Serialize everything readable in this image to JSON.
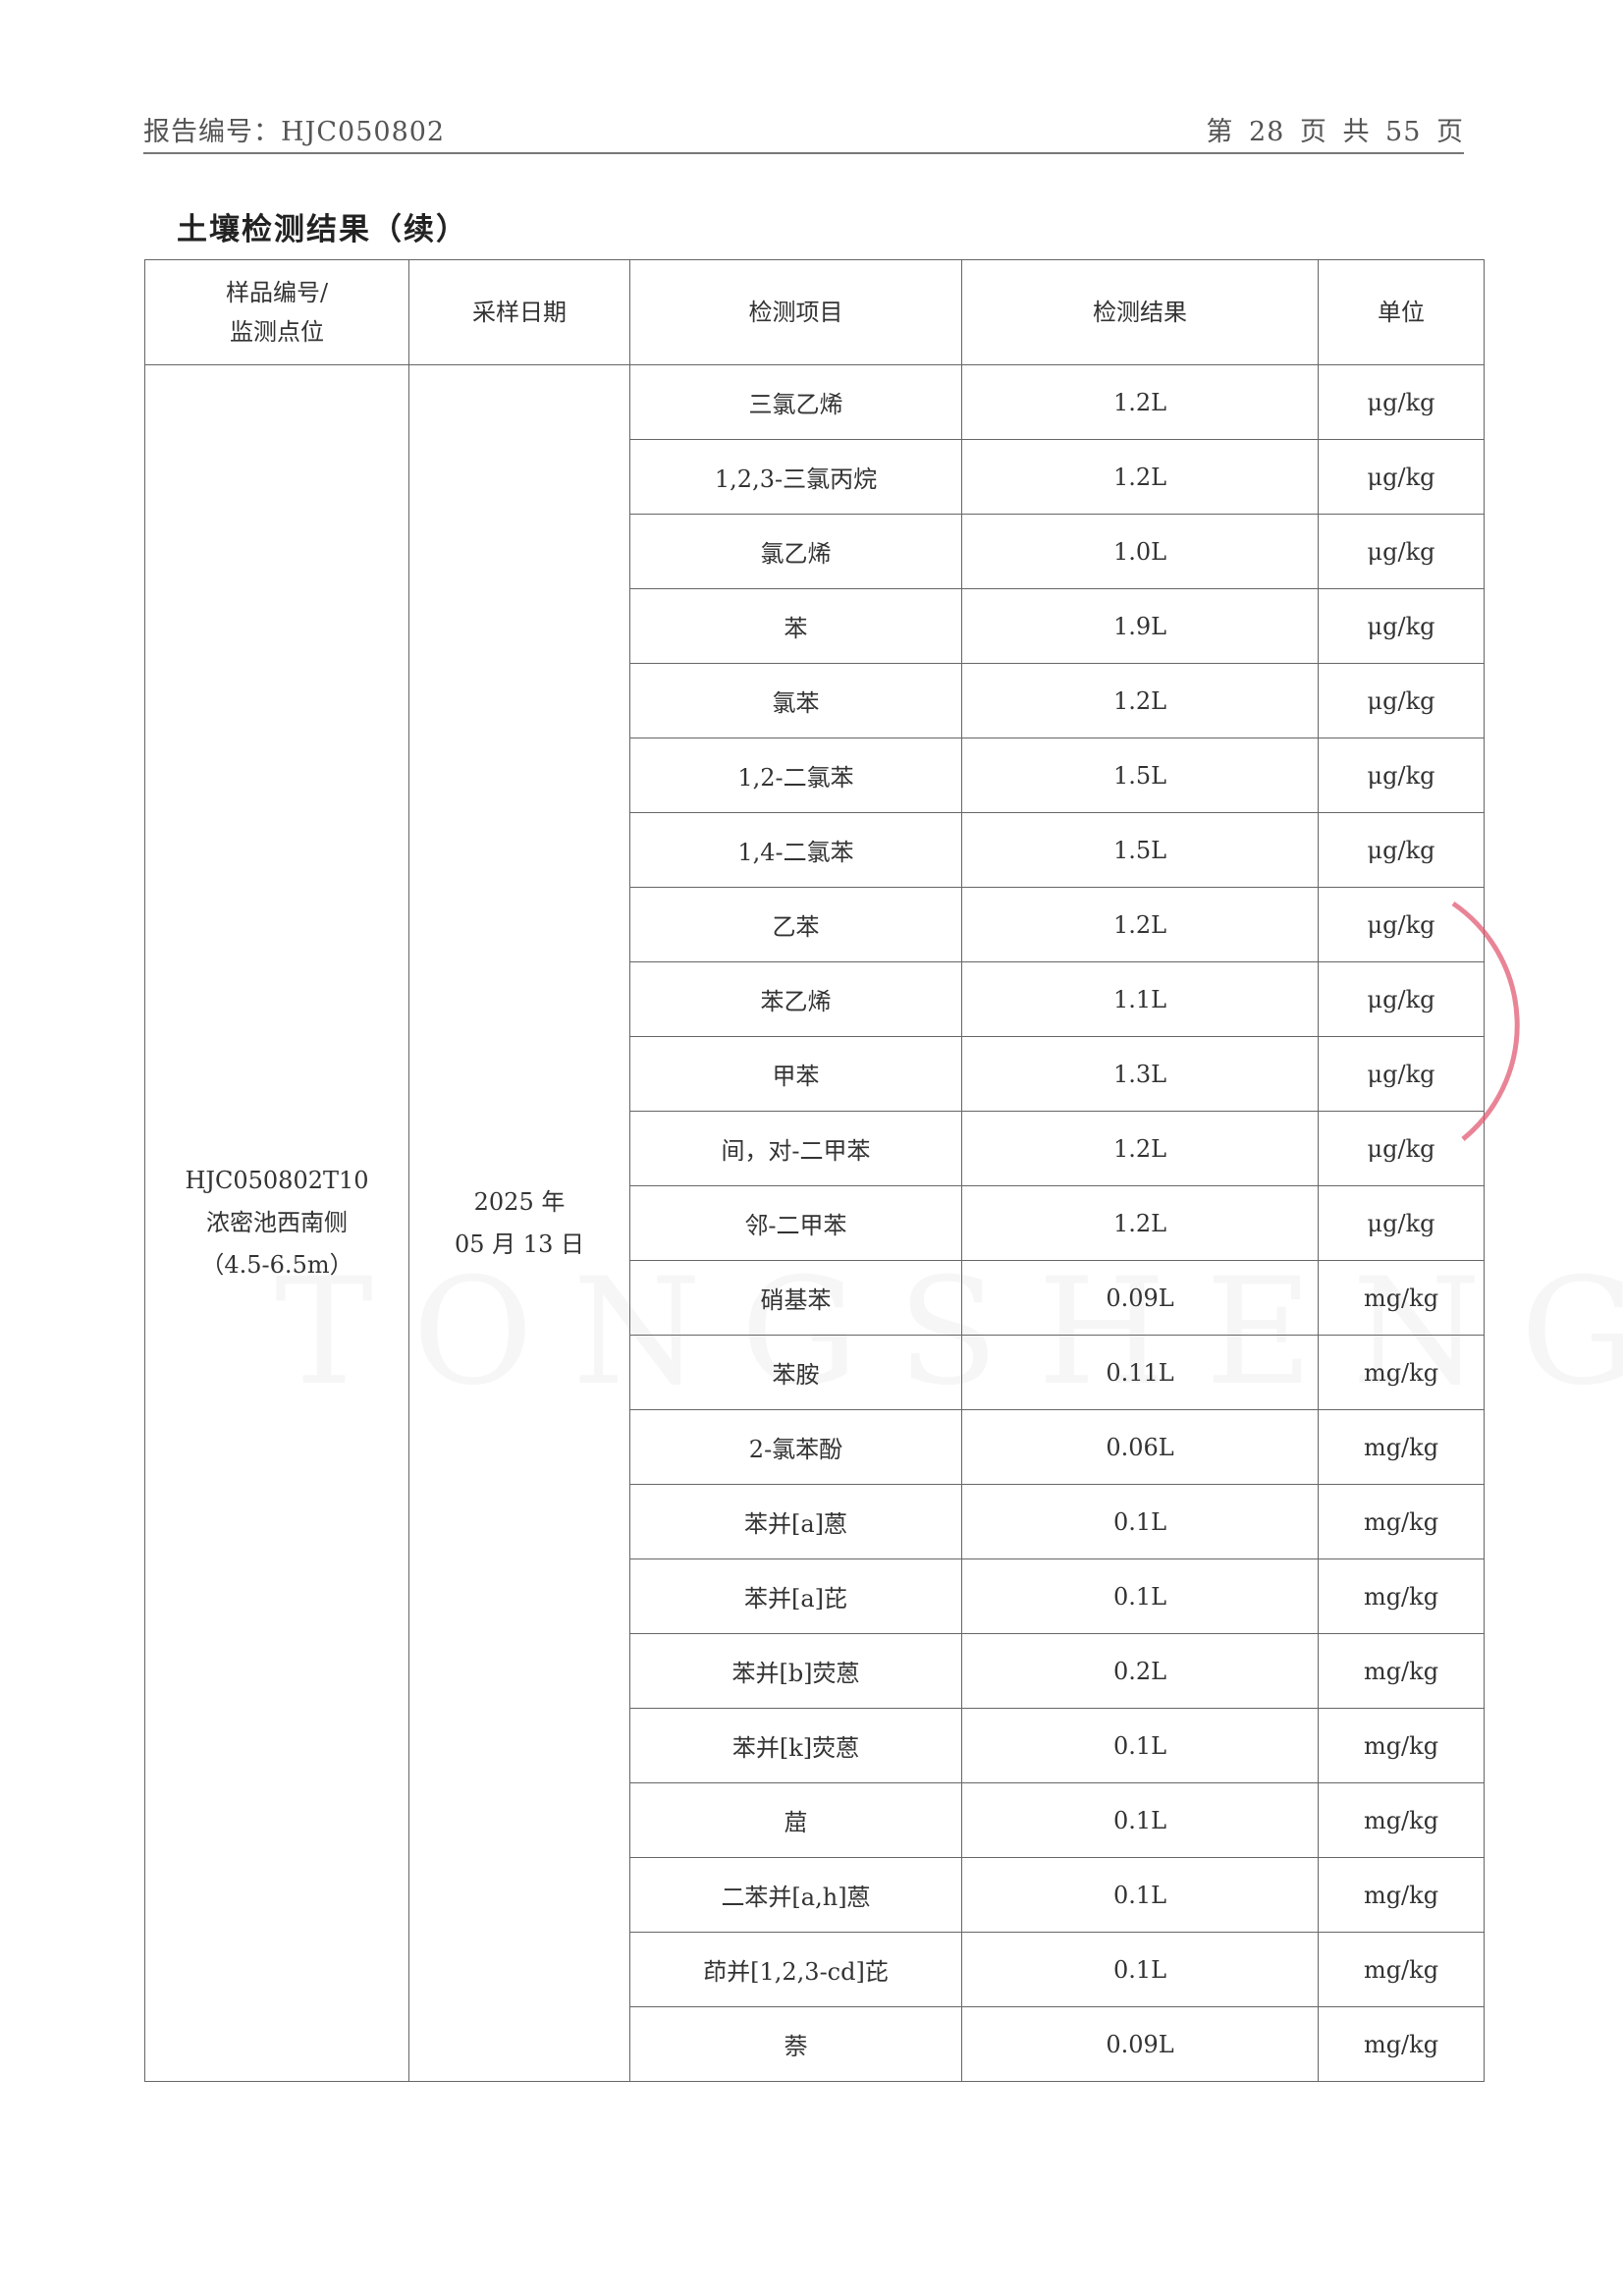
{
  "header": {
    "report_no": "报告编号：HJC050802",
    "page_info": "第 28 页 共 55 页"
  },
  "title": "土壤检测结果（续）",
  "table": {
    "headers": [
      "样品编号/\n监测点位",
      "采样日期",
      "检测项目",
      "检测结果",
      "单位"
    ],
    "sample": {
      "id": "HJC050802T10",
      "location": "浓密池西南侧",
      "depth": "（4.5-6.5m）"
    },
    "date": {
      "year": "2025 年",
      "day": "05 月 13 日"
    },
    "rows": [
      {
        "item": "三氯乙烯",
        "result": "1.2L",
        "unit": "μg/kg"
      },
      {
        "item": "1,2,3-三氯丙烷",
        "result": "1.2L",
        "unit": "μg/kg"
      },
      {
        "item": "氯乙烯",
        "result": "1.0L",
        "unit": "μg/kg"
      },
      {
        "item": "苯",
        "result": "1.9L",
        "unit": "μg/kg"
      },
      {
        "item": "氯苯",
        "result": "1.2L",
        "unit": "μg/kg"
      },
      {
        "item": "1,2-二氯苯",
        "result": "1.5L",
        "unit": "μg/kg"
      },
      {
        "item": "1,4-二氯苯",
        "result": "1.5L",
        "unit": "μg/kg"
      },
      {
        "item": "乙苯",
        "result": "1.2L",
        "unit": "μg/kg"
      },
      {
        "item": "苯乙烯",
        "result": "1.1L",
        "unit": "μg/kg"
      },
      {
        "item": "甲苯",
        "result": "1.3L",
        "unit": "μg/kg"
      },
      {
        "item": "间，对-二甲苯",
        "result": "1.2L",
        "unit": "μg/kg"
      },
      {
        "item": "邻-二甲苯",
        "result": "1.2L",
        "unit": "μg/kg"
      },
      {
        "item": "硝基苯",
        "result": "0.09L",
        "unit": "mg/kg"
      },
      {
        "item": "苯胺",
        "result": "0.11L",
        "unit": "mg/kg"
      },
      {
        "item": "2-氯苯酚",
        "result": "0.06L",
        "unit": "mg/kg"
      },
      {
        "item": "苯并[a]蒽",
        "result": "0.1L",
        "unit": "mg/kg"
      },
      {
        "item": "苯并[a]芘",
        "result": "0.1L",
        "unit": "mg/kg"
      },
      {
        "item": "苯并[b]荧蒽",
        "result": "0.2L",
        "unit": "mg/kg"
      },
      {
        "item": "苯并[k]荧蒽",
        "result": "0.1L",
        "unit": "mg/kg"
      },
      {
        "item": "䓛",
        "result": "0.1L",
        "unit": "mg/kg"
      },
      {
        "item": "二苯并[a,h]蒽",
        "result": "0.1L",
        "unit": "mg/kg"
      },
      {
        "item": "茚并[1,2,3-cd]芘",
        "result": "0.1L",
        "unit": "mg/kg"
      },
      {
        "item": "萘",
        "result": "0.09L",
        "unit": "mg/kg"
      }
    ]
  },
  "watermark": "TONGSHENG",
  "stamp_color": "#e0506a"
}
